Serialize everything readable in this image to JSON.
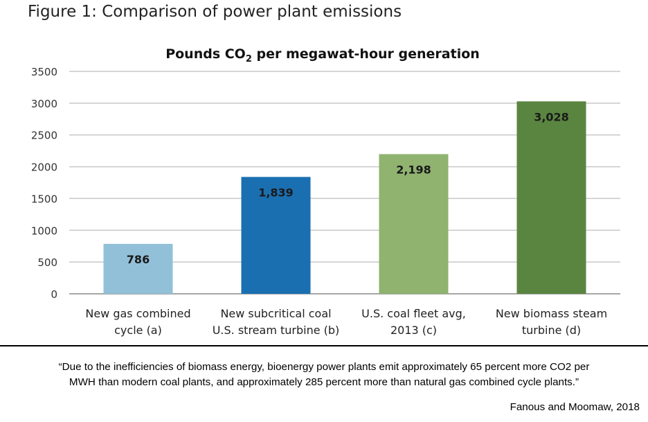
{
  "figure_title": "Figure 1: Comparison of power plant emissions",
  "chart_data": {
    "type": "bar",
    "title_main": "Pounds CO",
    "title_sub": "2",
    "title_rest": " per megawat-hour generation",
    "categories": [
      [
        "New gas combined",
        "cycle (a)"
      ],
      [
        "New subcritical coal",
        "U.S. stream turbine (b)"
      ],
      [
        "U.S. coal fleet avg,",
        "2013 (c)"
      ],
      [
        "New biomass steam",
        "turbine (d)"
      ]
    ],
    "values": [
      786,
      1839,
      2198,
      3028
    ],
    "data_labels": [
      "786",
      "1,839",
      "2,198",
      "3,028"
    ],
    "bar_colors": [
      "#92c0d8",
      "#1a6fb0",
      "#90b370",
      "#5a8540"
    ],
    "ylim": [
      0,
      3500
    ],
    "yticks": [
      0,
      500,
      1000,
      1500,
      2000,
      2500,
      3000,
      3500
    ],
    "grid": true,
    "legend": "none"
  },
  "quote": {
    "line1": "“Due to the inefficiencies of biomass energy, bioenergy power plants emit approximately 65 percent more CO2 per",
    "line2": "MWH than modern coal plants, and approximately 285 percent more than natural gas combined cycle plants.”"
  },
  "citation": "Fanous and Moomaw, 2018"
}
